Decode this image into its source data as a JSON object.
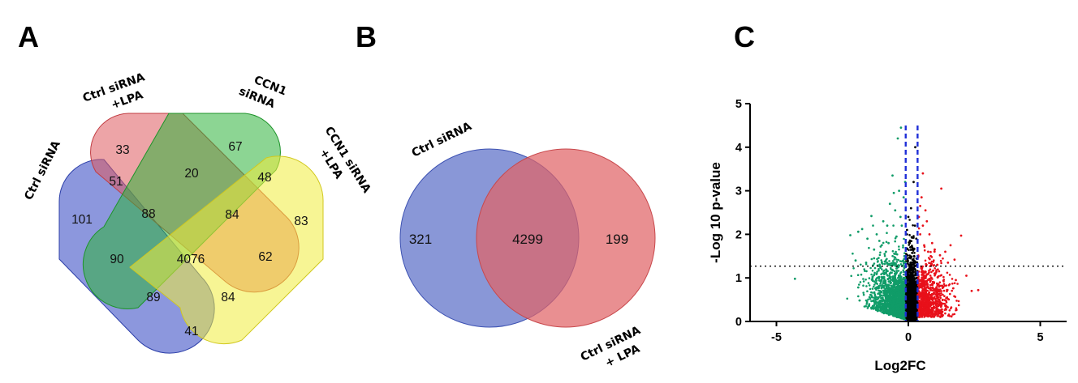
{
  "panels": {
    "a": {
      "letter": "A",
      "sets": {
        "ctrl_sirna": "Ctrl siRNA",
        "ctrl_lpa_1": "Ctrl siRNA",
        "ctrl_lpa_2": "+LPA",
        "ccn1_1": "CCN1",
        "ccn1_2": "siRNA",
        "ccn1_lpa_1": "CCN1 siRNA",
        "ccn1_lpa_2": "+LPA"
      },
      "regions": {
        "only_ctrl": "101",
        "only_ctrl_lpa": "33",
        "only_ccn1": "67",
        "only_ccn1_lpa": "83",
        "ctrl_ctrllpa": "51",
        "ctrllpa_ccn1": "20",
        "ccn1_ccn1lpa": "48",
        "ctrl_ctrllpa_ccn1": "88",
        "ctrllpa_ccn1_ccn1lpa": "84",
        "ctrl_ccn1": "90",
        "all": "4076",
        "ctrllpa_ccn1lpa": "62",
        "ctrl_ccn1_ccn1lpa": "89",
        "ctrl_ctrllpa_ccn1lpa": "84",
        "ctrl_ccn1lpa": "41"
      },
      "colors": {
        "blue": "#3f52c6",
        "red": "#df5a5f",
        "green": "#2db33a",
        "yellow": "#f0ec3c"
      }
    },
    "b": {
      "letter": "B",
      "set_left": "Ctrl siRNA",
      "set_right_1": "Ctrl siRNA",
      "set_right_2": "+ LPA",
      "left_only": "321",
      "overlap": "4299",
      "right_only": "199",
      "colors": {
        "left": "#5b6fc8",
        "right": "#e06467"
      }
    },
    "c": {
      "letter": "C"
    }
  },
  "chart_data": {
    "type": "scatter",
    "xlabel": "Log2FC",
    "ylabel": "-Log 10 p-value",
    "xlim": [
      -6,
      6
    ],
    "ylim": [
      0,
      5
    ],
    "xticks": [
      "-5",
      "0",
      "5"
    ],
    "yticks": [
      "0",
      "1",
      "2",
      "3",
      "4",
      "5"
    ],
    "grid": false,
    "reference_lines": {
      "significance_threshold_y": 1.27,
      "fold_change_thresholds_x": [
        -0.1,
        0.35
      ]
    },
    "series": [
      {
        "color": "#109c68",
        "points": [
          [
            -4.3,
            0.98
          ],
          [
            -2.2,
            1.98
          ],
          [
            -1.9,
            2.06
          ],
          [
            -1.75,
            2.12
          ],
          [
            -1.55,
            1.9
          ],
          [
            -1.4,
            2.42
          ],
          [
            -1.3,
            1.65
          ],
          [
            -1.2,
            2.0
          ],
          [
            -1.1,
            1.85
          ],
          [
            -1.05,
            1.72
          ],
          [
            -0.95,
            2.3
          ],
          [
            -0.9,
            1.55
          ],
          [
            -0.85,
            1.6
          ],
          [
            -0.8,
            2.2
          ],
          [
            -0.75,
            1.8
          ],
          [
            -0.7,
            2.7
          ],
          [
            -0.6,
            3.35
          ],
          [
            -0.55,
            2.95
          ],
          [
            -0.5,
            2.55
          ],
          [
            -0.45,
            1.95
          ],
          [
            -0.4,
            4.2
          ],
          [
            -0.35,
            3.0
          ],
          [
            -0.3,
            2.4
          ],
          [
            -0.28,
            4.45
          ],
          [
            -0.25,
            2.2
          ],
          [
            -0.2,
            1.7
          ],
          [
            -0.18,
            2.85
          ],
          [
            -0.15,
            1.5
          ],
          [
            -0.12,
            3.2
          ],
          [
            -2.0,
            1.4
          ],
          [
            -1.6,
            1.35
          ],
          [
            -1.3,
            1.45
          ],
          [
            -0.9,
            1.32
          ],
          [
            -1.9,
            0.78
          ],
          [
            -1.4,
            0.6
          ],
          [
            -0.8,
            0.4
          ],
          [
            -0.5,
            0.2
          ],
          [
            -0.3,
            0.1
          ]
        ]
      },
      {
        "color": "#000000",
        "points": [
          [
            -0.05,
            2.1
          ],
          [
            0.0,
            2.4
          ],
          [
            0.05,
            1.8
          ],
          [
            0.1,
            2.6
          ],
          [
            0.15,
            1.65
          ],
          [
            0.2,
            3.2
          ],
          [
            0.25,
            2.2
          ],
          [
            0.3,
            1.9
          ],
          [
            -0.08,
            1.55
          ],
          [
            0.08,
            1.45
          ],
          [
            0.22,
            1.5
          ],
          [
            0.12,
            1.35
          ],
          [
            0.02,
            1.3
          ],
          [
            0.18,
            1.2
          ],
          [
            0.28,
            1.1
          ],
          [
            0.26,
            4.0
          ]
        ]
      },
      {
        "color": "#e8101a",
        "points": [
          [
            0.4,
            2.4
          ],
          [
            0.45,
            2.0
          ],
          [
            0.5,
            2.85
          ],
          [
            0.55,
            2.2
          ],
          [
            0.6,
            1.75
          ],
          [
            0.7,
            2.3
          ],
          [
            0.75,
            1.6
          ],
          [
            0.8,
            2.0
          ],
          [
            0.85,
            1.5
          ],
          [
            0.9,
            1.8
          ],
          [
            1.0,
            1.65
          ],
          [
            1.2,
            1.52
          ],
          [
            1.25,
            3.05
          ],
          [
            1.4,
            1.6
          ],
          [
            1.6,
            1.75
          ],
          [
            1.75,
            1.42
          ],
          [
            2.0,
            1.97
          ],
          [
            2.2,
            1.05
          ],
          [
            2.4,
            0.7
          ],
          [
            2.65,
            0.72
          ],
          [
            0.55,
            3.4
          ],
          [
            0.45,
            2.65
          ],
          [
            0.65,
            2.55
          ],
          [
            1.1,
            1.3
          ],
          [
            1.5,
            1.35
          ],
          [
            0.95,
            1.28
          ],
          [
            1.8,
            0.95
          ],
          [
            1.3,
            0.5
          ],
          [
            0.7,
            0.3
          ]
        ]
      }
    ]
  }
}
